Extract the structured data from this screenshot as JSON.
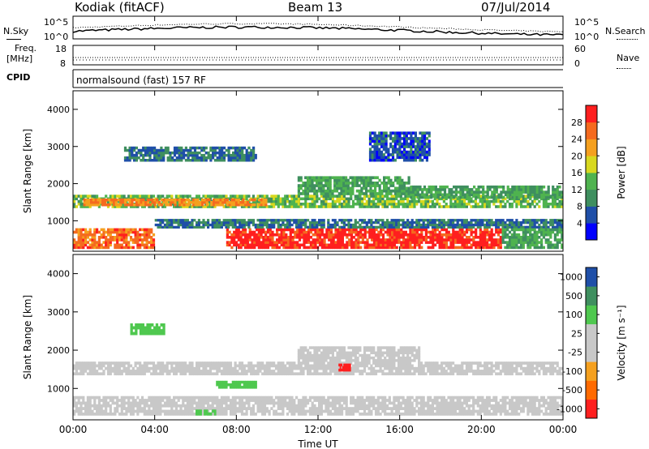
{
  "header": {
    "station": "Kodiak (fitACF)",
    "beam": "Beam 13",
    "date": "07/Jul/2014"
  },
  "top_panels": {
    "nsky_label": "N.Sky",
    "nsearch_label": "N.Search",
    "noise_ticks_left": [
      "10^5",
      "10^0"
    ],
    "noise_ticks_right": [
      "10^5",
      "10^0"
    ],
    "freq_label_1": "Freq.",
    "freq_label_2": "[MHz]",
    "freq_ticks": [
      "18",
      "8"
    ],
    "nave_label": "Nave",
    "nave_ticks": [
      "60",
      "0"
    ],
    "cpid_label": "CPID",
    "cpid_text": "normalsound (fast) 157 RF"
  },
  "colors": {
    "power_scale": [
      "#0000ff",
      "#1f4fa8",
      "#3f8f5f",
      "#4fb34f",
      "#d8d81f",
      "#f5a01f",
      "#f56a1f",
      "#ff1f1f"
    ],
    "velocity_scale": [
      "#ff1f1f",
      "#ff6a00",
      "#f5a01f",
      "#c8c8c8",
      "#c8c8c8",
      "#4fc84f",
      "#3f8f5f",
      "#1f4fa8"
    ]
  },
  "chart_data": [
    {
      "type": "heatmap",
      "name_hidden": "power",
      "xlabel": "Time UT",
      "ylabel": "Slant Range [km]",
      "x_ticks": [
        "00:00",
        "04:00",
        "08:00",
        "12:00",
        "16:00",
        "20:00",
        "00:00"
      ],
      "y_ticks": [
        "1000",
        "2000",
        "3000",
        "4000"
      ],
      "xlim": [
        0,
        24
      ],
      "ylim": [
        180,
        4500
      ],
      "colorbar_label": "Power [dB]",
      "colorbar_ticks": [
        "4",
        "8",
        "12",
        "16",
        "20",
        "24",
        "28"
      ],
      "colorbar_range": [
        0,
        32
      ],
      "bands": [
        {
          "t0": 0.0,
          "t1": 24.0,
          "r0": 1350,
          "r1": 1700,
          "value": 14
        },
        {
          "t0": 0.5,
          "t1": 9.5,
          "r0": 1400,
          "r1": 1600,
          "value": 24
        },
        {
          "t0": 0.0,
          "t1": 4.0,
          "r0": 250,
          "r1": 800,
          "value": 26
        },
        {
          "t0": 7.5,
          "t1": 21.0,
          "r0": 250,
          "r1": 800,
          "value": 30
        },
        {
          "t0": 4.0,
          "t1": 24.0,
          "r0": 800,
          "r1": 1050,
          "value": 8
        },
        {
          "t0": 21.0,
          "t1": 24.0,
          "r0": 250,
          "r1": 800,
          "value": 12
        },
        {
          "t0": 2.5,
          "t1": 9.0,
          "r0": 2600,
          "r1": 3000,
          "value": 8
        },
        {
          "t0": 11.0,
          "t1": 16.5,
          "r0": 1700,
          "r1": 2200,
          "value": 12
        },
        {
          "t0": 16.5,
          "t1": 24.0,
          "r0": 1600,
          "r1": 1950,
          "value": 12
        },
        {
          "t0": 14.5,
          "t1": 17.5,
          "r0": 2600,
          "r1": 3400,
          "value": 6
        }
      ]
    },
    {
      "type": "heatmap",
      "name_hidden": "velocity",
      "xlabel": "Time UT",
      "ylabel": "Slant Range [km]",
      "x_ticks": [
        "00:00",
        "04:00",
        "08:00",
        "12:00",
        "16:00",
        "20:00",
        "00:00"
      ],
      "y_ticks": [
        "1000",
        "2000",
        "3000",
        "4000"
      ],
      "xlim": [
        0,
        24
      ],
      "ylim": [
        180,
        4500
      ],
      "colorbar_label": "Velocity [m s⁻¹]",
      "colorbar_ticks": [
        "1000",
        "500",
        "100",
        "25",
        "-25",
        "-100",
        "-500",
        "-1000"
      ],
      "bands": [
        {
          "t0": 0.0,
          "t1": 24.0,
          "r0": 1350,
          "r1": 1700,
          "value": 0
        },
        {
          "t0": 0.0,
          "t1": 24.0,
          "r0": 300,
          "r1": 800,
          "value": 0
        },
        {
          "t0": 11.0,
          "t1": 17.0,
          "r0": 1700,
          "r1": 2100,
          "value": 0
        },
        {
          "t0": 2.8,
          "t1": 4.5,
          "r0": 2400,
          "r1": 2700,
          "value": 300
        },
        {
          "t0": 7.0,
          "t1": 9.0,
          "r0": 1000,
          "r1": 1200,
          "value": 150
        },
        {
          "t0": 6.0,
          "t1": 7.0,
          "r0": 300,
          "r1": 450,
          "value": 150
        },
        {
          "t0": 13.0,
          "t1": 13.6,
          "r0": 1450,
          "r1": 1650,
          "value": -800
        }
      ]
    }
  ]
}
